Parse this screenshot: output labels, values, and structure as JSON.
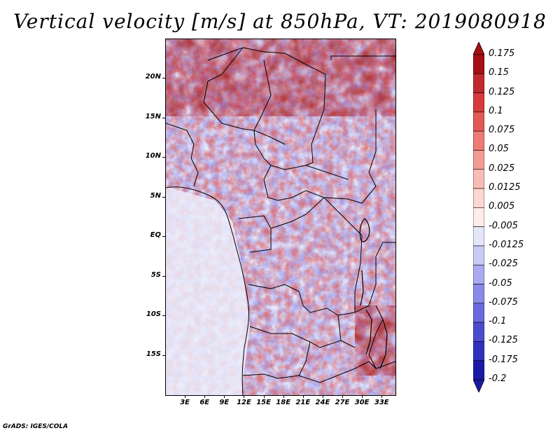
{
  "figure": {
    "title": "Vertical velocity [m/s] at 850hPa, VT: 2019080918",
    "credit": "GrADS: IGES/COLA"
  },
  "chart_data": {
    "type": "heatmap",
    "title": "Vertical velocity [m/s] at 850hPa, VT: 2019080918",
    "variable": "Vertical velocity",
    "units": "m/s",
    "level": "850hPa",
    "valid_time": "2019080918",
    "region": "Central Africa",
    "lon_range": [
      0,
      35
    ],
    "lat_range": [
      -20,
      25
    ],
    "lat_ticks": [
      {
        "value": 20,
        "label": "20N"
      },
      {
        "value": 15,
        "label": "15N"
      },
      {
        "value": 10,
        "label": "10N"
      },
      {
        "value": 5,
        "label": "5N"
      },
      {
        "value": 0,
        "label": "EQ"
      },
      {
        "value": -5,
        "label": "5S"
      },
      {
        "value": -10,
        "label": "10S"
      },
      {
        "value": -15,
        "label": "15S"
      }
    ],
    "lon_ticks": [
      {
        "value": 3,
        "label": "3E"
      },
      {
        "value": 6,
        "label": "6E"
      },
      {
        "value": 9,
        "label": "9E"
      },
      {
        "value": 12,
        "label": "12E"
      },
      {
        "value": 15,
        "label": "15E"
      },
      {
        "value": 18,
        "label": "18E"
      },
      {
        "value": 21,
        "label": "21E"
      },
      {
        "value": 24,
        "label": "24E"
      },
      {
        "value": 27,
        "label": "27E"
      },
      {
        "value": 30,
        "label": "30E"
      },
      {
        "value": 33,
        "label": "33E"
      }
    ],
    "colorbar": {
      "levels": [
        {
          "label": "0.175",
          "color": "#a50f15"
        },
        {
          "label": "0.15",
          "color": "#c0282c"
        },
        {
          "label": "0.125",
          "color": "#d63a3a"
        },
        {
          "label": "0.1",
          "color": "#e35a55"
        },
        {
          "label": "0.075",
          "color": "#ec7c74"
        },
        {
          "label": "0.05",
          "color": "#f39c94"
        },
        {
          "label": "0.025",
          "color": "#f8bcb5"
        },
        {
          "label": "0.0125",
          "color": "#fcd6d0"
        },
        {
          "label": "0.005",
          "color": "#feece8"
        },
        {
          "label": "-0.005",
          "color": "#ffffff"
        },
        {
          "label": "-0.0125",
          "color": "#e6e6fb"
        },
        {
          "label": "-0.025",
          "color": "#cacaf6"
        },
        {
          "label": "-0.05",
          "color": "#aaaaf0"
        },
        {
          "label": "-0.075",
          "color": "#8a8ae8"
        },
        {
          "label": "-0.1",
          "color": "#6a6adc"
        },
        {
          "label": "-0.125",
          "color": "#4c4cce"
        },
        {
          "label": "-0.175",
          "color": "#3030bc"
        },
        {
          "label": "-0.2",
          "color": "#1a1aa6"
        }
      ],
      "top_arrow_color": "#a50f15",
      "bottom_arrow_color": "#1a1aa6"
    }
  }
}
